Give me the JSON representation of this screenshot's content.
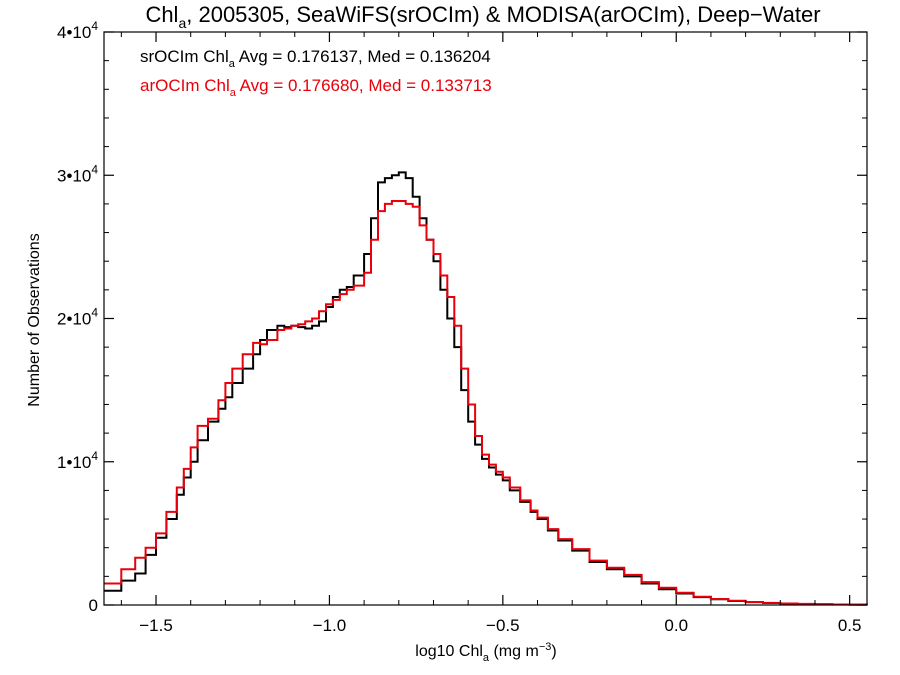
{
  "chart_data": {
    "type": "line",
    "step": true,
    "title": {
      "prefix": "Chl",
      "subscript": "a",
      "suffix": ", 2005305, SeaWiFS(srOCIm) & MODISA(arOCIm), Deep−Water"
    },
    "xlabel": {
      "prefix": "log10 Chl",
      "subscript": "a",
      "suffix": " (mg m",
      "superscript": "−3",
      "close": ")"
    },
    "ylabel": "Number of Observations",
    "xlim": [
      -1.65,
      0.55
    ],
    "ylim": [
      0,
      40000
    ],
    "x_ticks": [
      {
        "value": -1.5,
        "label": "−1.5"
      },
      {
        "value": -1.0,
        "label": "−1.0"
      },
      {
        "value": -0.5,
        "label": "−0.5"
      },
      {
        "value": 0.0,
        "label": "0.0"
      },
      {
        "value": 0.5,
        "label": "0.5"
      }
    ],
    "y_ticks": [
      {
        "value": 0,
        "label": "0",
        "exp": ""
      },
      {
        "value": 10000,
        "label": "1•10",
        "exp": "4"
      },
      {
        "value": 20000,
        "label": "2•10",
        "exp": "4"
      },
      {
        "value": 30000,
        "label": "3•10",
        "exp": "4"
      },
      {
        "value": 40000,
        "label": "4•10",
        "exp": "4"
      }
    ],
    "grid": false,
    "legend_position": "top-left",
    "annotations": [
      {
        "color": "#000000",
        "prefix": "srOCIm Chl",
        "subscript": "a",
        "suffix": " Avg = 0.176137, Med = 0.136204"
      },
      {
        "color": "#e8000b",
        "prefix": "arOCIm Chl",
        "subscript": "a",
        "suffix": " Avg = 0.176680, Med = 0.133713"
      }
    ],
    "series": [
      {
        "color": "#000000",
        "x": [
          -1.65,
          -1.6,
          -1.56,
          -1.53,
          -1.5,
          -1.47,
          -1.44,
          -1.42,
          -1.4,
          -1.38,
          -1.35,
          -1.32,
          -1.3,
          -1.28,
          -1.25,
          -1.22,
          -1.2,
          -1.18,
          -1.15,
          -1.13,
          -1.11,
          -1.09,
          -1.07,
          -1.05,
          -1.03,
          -1.01,
          -0.99,
          -0.97,
          -0.95,
          -0.93,
          -0.9,
          -0.88,
          -0.86,
          -0.84,
          -0.82,
          -0.8,
          -0.78,
          -0.76,
          -0.74,
          -0.72,
          -0.7,
          -0.68,
          -0.66,
          -0.64,
          -0.62,
          -0.6,
          -0.58,
          -0.56,
          -0.54,
          -0.52,
          -0.5,
          -0.48,
          -0.45,
          -0.42,
          -0.4,
          -0.37,
          -0.34,
          -0.3,
          -0.25,
          -0.2,
          -0.15,
          -0.1,
          -0.05,
          0.0,
          0.05,
          0.1,
          0.15,
          0.2,
          0.25,
          0.3,
          0.35,
          0.4,
          0.45,
          0.5,
          0.55
        ],
        "y": [
          1000,
          1700,
          2200,
          3500,
          4700,
          6000,
          7700,
          8900,
          10000,
          11500,
          12800,
          13700,
          14500,
          15500,
          16500,
          17500,
          18500,
          19200,
          19500,
          19400,
          19500,
          19400,
          19300,
          19500,
          19800,
          20800,
          21500,
          22000,
          22200,
          23000,
          24500,
          27000,
          29500,
          29800,
          30000,
          30200,
          29800,
          28500,
          27000,
          25500,
          24000,
          22000,
          20000,
          18000,
          15000,
          12800,
          11200,
          10200,
          9600,
          9100,
          8700,
          8000,
          7200,
          6500,
          6000,
          5200,
          4500,
          3800,
          3000,
          2500,
          2000,
          1500,
          1100,
          800,
          550,
          400,
          280,
          200,
          140,
          100,
          70,
          50,
          35,
          25,
          20
        ]
      },
      {
        "color": "#e8000b",
        "x": [
          -1.65,
          -1.6,
          -1.56,
          -1.53,
          -1.5,
          -1.47,
          -1.44,
          -1.42,
          -1.4,
          -1.38,
          -1.35,
          -1.32,
          -1.3,
          -1.28,
          -1.25,
          -1.22,
          -1.2,
          -1.18,
          -1.15,
          -1.13,
          -1.11,
          -1.09,
          -1.07,
          -1.05,
          -1.03,
          -1.01,
          -0.99,
          -0.97,
          -0.95,
          -0.93,
          -0.9,
          -0.88,
          -0.86,
          -0.84,
          -0.82,
          -0.8,
          -0.78,
          -0.76,
          -0.74,
          -0.72,
          -0.7,
          -0.68,
          -0.66,
          -0.64,
          -0.62,
          -0.6,
          -0.58,
          -0.56,
          -0.54,
          -0.52,
          -0.5,
          -0.48,
          -0.45,
          -0.42,
          -0.4,
          -0.37,
          -0.34,
          -0.3,
          -0.25,
          -0.2,
          -0.15,
          -0.1,
          -0.05,
          0.0,
          0.05,
          0.1,
          0.15,
          0.2,
          0.25,
          0.3,
          0.35,
          0.4,
          0.45,
          0.5,
          0.55
        ],
        "y": [
          1500,
          2500,
          3300,
          4000,
          5000,
          6500,
          8200,
          9500,
          11000,
          12500,
          13000,
          14300,
          15500,
          16500,
          17500,
          18300,
          18200,
          18500,
          19200,
          19300,
          19500,
          19600,
          19800,
          20000,
          20500,
          21000,
          21300,
          21700,
          22000,
          22300,
          23200,
          25500,
          27500,
          28000,
          28200,
          28200,
          28000,
          27800,
          26500,
          25500,
          24500,
          23000,
          21500,
          19500,
          16500,
          14000,
          11800,
          10500,
          9800,
          9300,
          8900,
          8200,
          7300,
          6600,
          6100,
          5300,
          4600,
          3900,
          3100,
          2600,
          2100,
          1600,
          1200,
          850,
          580,
          420,
          300,
          210,
          150,
          105,
          75,
          52,
          37,
          27,
          22
        ]
      }
    ]
  }
}
